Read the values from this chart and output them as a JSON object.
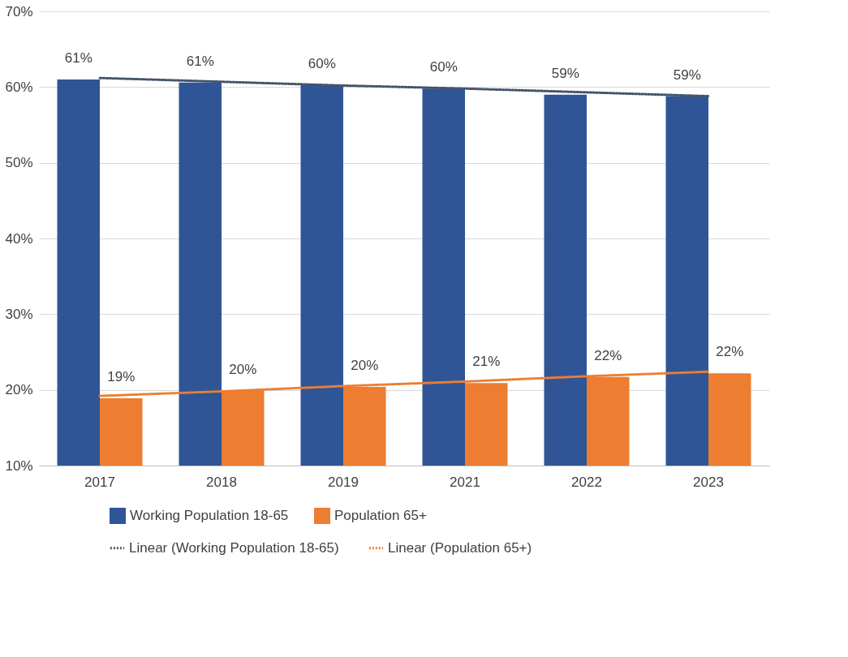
{
  "chart_data": {
    "type": "bar",
    "categories": [
      "2017",
      "2018",
      "2019",
      "2021",
      "2022",
      "2023"
    ],
    "series": [
      {
        "name": "Working Population 18-65",
        "color": "#2f5597",
        "values": [
          61.0,
          60.6,
          60.3,
          59.8,
          59.0,
          58.8
        ],
        "value_labels": [
          "61%",
          "61%",
          "60%",
          "60%",
          "59%",
          "59%"
        ]
      },
      {
        "name": "Population 65+",
        "color": "#ed7d31",
        "values": [
          18.9,
          19.9,
          20.4,
          20.9,
          21.7,
          22.2
        ],
        "value_labels": [
          "19%",
          "20%",
          "20%",
          "21%",
          "22%",
          "22%"
        ]
      },
      {
        "name": "Linear (Working Population 18-65)",
        "type": "line",
        "line_style": "dotted",
        "color": "#44546a",
        "values": [
          61.2,
          60.7,
          60.2,
          59.8,
          59.3,
          58.8
        ]
      },
      {
        "name": "Linear (Population 65+)",
        "type": "line",
        "line_style": "dotted",
        "color": "#ed7d31",
        "values": [
          19.2,
          19.8,
          20.5,
          21.1,
          21.8,
          22.4
        ]
      }
    ],
    "ylim": [
      10,
      70
    ],
    "yticks": [
      {
        "value": 10,
        "label": "10%"
      },
      {
        "value": 20,
        "label": "20%"
      },
      {
        "value": 30,
        "label": "30%"
      },
      {
        "value": 40,
        "label": "40%"
      },
      {
        "value": 50,
        "label": "50%"
      },
      {
        "value": 60,
        "label": "60%"
      },
      {
        "value": 70,
        "label": "70%"
      }
    ],
    "grid": "y",
    "legend": "bottom"
  }
}
